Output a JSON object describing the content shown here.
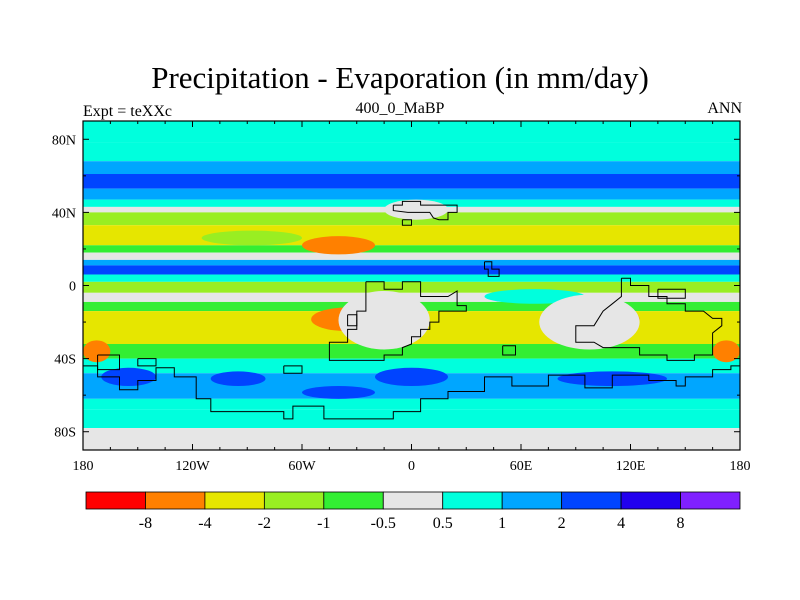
{
  "chart_data": {
    "type": "heatmap",
    "title": "Precipitation - Evaporation (in mm/day)",
    "subtitle_left": "Expt = teXXc",
    "subtitle_center": "400_0_MaBP",
    "subtitle_right": "ANN",
    "x_range": [
      -180,
      180
    ],
    "y_range": [
      -90,
      90
    ],
    "x_ticks": [
      {
        "value": -180,
        "label": "180"
      },
      {
        "value": -120,
        "label": "120W"
      },
      {
        "value": -60,
        "label": "60W"
      },
      {
        "value": 0,
        "label": "0"
      },
      {
        "value": 60,
        "label": "60E"
      },
      {
        "value": 120,
        "label": "120E"
      },
      {
        "value": 180,
        "label": "180"
      }
    ],
    "y_ticks": [
      {
        "value": 80,
        "label": "80N"
      },
      {
        "value": 40,
        "label": "40N"
      },
      {
        "value": 0,
        "label": "0"
      },
      {
        "value": -40,
        "label": "40S"
      },
      {
        "value": -80,
        "label": "80S"
      }
    ],
    "colorbar": {
      "colors": [
        "#ff0000",
        "#ff8000",
        "#e6e600",
        "#99ee22",
        "#33ee33",
        "#e6e6e6",
        "#00ffdd",
        "#00a6ff",
        "#0044ff",
        "#2200ee",
        "#8020ff"
      ],
      "labels": [
        "-8",
        "-4",
        "-2",
        "-1",
        "-0.5",
        "0.5",
        "1",
        "2",
        "4",
        "8"
      ]
    },
    "zonal_bands": [
      {
        "lat_top": 90,
        "lat_bottom": 78,
        "level": 6
      },
      {
        "lat_top": 78,
        "lat_bottom": 68,
        "level": 6
      },
      {
        "lat_top": 68,
        "lat_bottom": 61,
        "level": 7
      },
      {
        "lat_top": 61,
        "lat_bottom": 53,
        "level": 8
      },
      {
        "lat_top": 53,
        "lat_bottom": 47,
        "level": 7
      },
      {
        "lat_top": 47,
        "lat_bottom": 43,
        "level": 6
      },
      {
        "lat_top": 43,
        "lat_bottom": 40,
        "level": 5
      },
      {
        "lat_top": 40,
        "lat_bottom": 33,
        "level": 3
      },
      {
        "lat_top": 33,
        "lat_bottom": 22,
        "level": 2
      },
      {
        "lat_top": 22,
        "lat_bottom": 18,
        "level": 4
      },
      {
        "lat_top": 18,
        "lat_bottom": 14,
        "level": 5
      },
      {
        "lat_top": 14,
        "lat_bottom": 11,
        "level": 7
      },
      {
        "lat_top": 11,
        "lat_bottom": 6,
        "level": 8
      },
      {
        "lat_top": 6,
        "lat_bottom": 2,
        "level": 6
      },
      {
        "lat_top": 2,
        "lat_bottom": -4,
        "level": 3
      },
      {
        "lat_top": -4,
        "lat_bottom": -9,
        "level": 5
      },
      {
        "lat_top": -9,
        "lat_bottom": -14,
        "level": 4
      },
      {
        "lat_top": -14,
        "lat_bottom": -32,
        "level": 2
      },
      {
        "lat_top": -32,
        "lat_bottom": -40,
        "level": 4
      },
      {
        "lat_top": -40,
        "lat_bottom": -48,
        "level": 6
      },
      {
        "lat_top": -48,
        "lat_bottom": -62,
        "level": 7
      },
      {
        "lat_top": -62,
        "lat_bottom": -68,
        "level": 6
      },
      {
        "lat_top": -68,
        "lat_bottom": -78,
        "level": 6
      },
      {
        "lat_top": -78,
        "lat_bottom": -90,
        "level": 5
      }
    ],
    "anomalies": [
      {
        "lon": [
          -60,
          -20
        ],
        "lat": [
          27,
          17
        ],
        "level": 1
      },
      {
        "lon": [
          -115,
          -60
        ],
        "lat": [
          30,
          22
        ],
        "level": 3
      },
      {
        "lon": [
          -55,
          -15
        ],
        "lat": [
          -12,
          -25
        ],
        "level": 1
      },
      {
        "lon": [
          90,
          125
        ],
        "lat": [
          -12,
          -25
        ],
        "level": 1
      },
      {
        "lon": [
          -180,
          -165
        ],
        "lat": [
          -30,
          -42
        ],
        "level": 1
      },
      {
        "lon": [
          165,
          180
        ],
        "lat": [
          -30,
          -42
        ],
        "level": 1
      },
      {
        "lon": [
          40,
          95
        ],
        "lat": [
          -2,
          -10
        ],
        "level": 6
      },
      {
        "lon": [
          -40,
          10
        ],
        "lat": [
          -3,
          -35
        ],
        "level": 5
      },
      {
        "lon": [
          70,
          125
        ],
        "lat": [
          -5,
          -35
        ],
        "level": 5
      },
      {
        "lon": [
          -15,
          20
        ],
        "lat": [
          47,
          36
        ],
        "level": 5
      },
      {
        "lon": [
          -170,
          -140
        ],
        "lat": [
          -45,
          -55
        ],
        "level": 8
      },
      {
        "lon": [
          -110,
          -80
        ],
        "lat": [
          -47,
          -55
        ],
        "level": 8
      },
      {
        "lon": [
          -20,
          20
        ],
        "lat": [
          -45,
          -55
        ],
        "level": 8
      },
      {
        "lon": [
          80,
          140
        ],
        "lat": [
          -47,
          -55
        ],
        "level": 8
      },
      {
        "lon": [
          -60,
          -20
        ],
        "lat": [
          -55,
          -62
        ],
        "level": 8
      }
    ],
    "coastlines": [
      {
        "name": "north-block",
        "points": [
          [
            -10,
            44
          ],
          [
            -5,
            44
          ],
          [
            -5,
            46
          ],
          [
            5,
            46
          ],
          [
            5,
            44
          ],
          [
            15,
            44
          ],
          [
            25,
            44
          ],
          [
            25,
            40
          ],
          [
            20,
            40
          ],
          [
            20,
            36
          ],
          [
            15,
            36
          ],
          [
            12,
            37
          ],
          [
            10,
            40
          ],
          [
            0,
            40
          ],
          [
            -2,
            40
          ],
          [
            -10,
            41
          ],
          [
            -10,
            44
          ]
        ]
      },
      {
        "name": "west-continent",
        "points": [
          [
            -25,
            2
          ],
          [
            -15,
            2
          ],
          [
            -15,
            -2
          ],
          [
            -5,
            -2
          ],
          [
            -5,
            2
          ],
          [
            5,
            2
          ],
          [
            5,
            -6
          ],
          [
            20,
            -6
          ],
          [
            25,
            -3
          ],
          [
            25,
            -11
          ],
          [
            30,
            -11
          ],
          [
            30,
            -14
          ],
          [
            15,
            -14
          ],
          [
            15,
            -20
          ],
          [
            10,
            -20
          ],
          [
            10,
            -24
          ],
          [
            5,
            -24
          ],
          [
            5,
            -28
          ],
          [
            0,
            -28
          ],
          [
            0,
            -32
          ],
          [
            -5,
            -34
          ],
          [
            -5,
            -38
          ],
          [
            -15,
            -38
          ],
          [
            -15,
            -41
          ],
          [
            -45,
            -41
          ],
          [
            -45,
            -31
          ],
          [
            -35,
            -31
          ],
          [
            -35,
            -24
          ],
          [
            -30,
            -24
          ],
          [
            -30,
            -14
          ],
          [
            -25,
            -14
          ],
          [
            -25,
            -2
          ],
          [
            -25,
            2
          ]
        ]
      },
      {
        "name": "east-continent",
        "points": [
          [
            115,
            4
          ],
          [
            120,
            4
          ],
          [
            120,
            0
          ],
          [
            130,
            0
          ],
          [
            130,
            -6
          ],
          [
            140,
            -6
          ],
          [
            140,
            -10
          ],
          [
            150,
            -10
          ],
          [
            150,
            -14
          ],
          [
            160,
            -14
          ],
          [
            165,
            -18
          ],
          [
            170,
            -18
          ],
          [
            170,
            -22
          ],
          [
            165,
            -26
          ],
          [
            165,
            -38
          ],
          [
            155,
            -38
          ],
          [
            155,
            -41
          ],
          [
            140,
            -41
          ],
          [
            140,
            -38
          ],
          [
            125,
            -38
          ],
          [
            125,
            -34
          ],
          [
            105,
            -34
          ],
          [
            100,
            -31
          ],
          [
            90,
            -31
          ],
          [
            90,
            -22
          ],
          [
            100,
            -22
          ],
          [
            105,
            -14
          ],
          [
            110,
            -10
          ],
          [
            115,
            -6
          ],
          [
            115,
            4
          ]
        ]
      },
      {
        "name": "mid-island",
        "points": [
          [
            40,
            13
          ],
          [
            44,
            13
          ],
          [
            44,
            9
          ],
          [
            48,
            9
          ],
          [
            48,
            5
          ],
          [
            42,
            5
          ],
          [
            42,
            9
          ],
          [
            40,
            9
          ],
          [
            40,
            13
          ]
        ]
      },
      {
        "name": "small-east-box",
        "points": [
          [
            135,
            -2
          ],
          [
            150,
            -2
          ],
          [
            150,
            -7
          ],
          [
            135,
            -7
          ],
          [
            135,
            -2
          ]
        ]
      },
      {
        "name": "isle-a",
        "points": [
          [
            -35,
            -16
          ],
          [
            -30,
            -16
          ],
          [
            -30,
            -22
          ],
          [
            -35,
            -22
          ],
          [
            -35,
            -16
          ]
        ]
      },
      {
        "name": "isle-b",
        "points": [
          [
            50,
            -33
          ],
          [
            57,
            -33
          ],
          [
            57,
            -38
          ],
          [
            50,
            -38
          ],
          [
            50,
            -33
          ]
        ]
      },
      {
        "name": "isle-c",
        "points": [
          [
            -5,
            36
          ],
          [
            0,
            36
          ],
          [
            0,
            33
          ],
          [
            -5,
            33
          ],
          [
            -5,
            36
          ]
        ]
      },
      {
        "name": "southern-continent",
        "points": [
          [
            -180,
            -44
          ],
          [
            -172,
            -44
          ],
          [
            -172,
            -50
          ],
          [
            -160,
            -50
          ],
          [
            -160,
            -57
          ],
          [
            -150,
            -57
          ],
          [
            -150,
            -52
          ],
          [
            -140,
            -52
          ],
          [
            -140,
            -45
          ],
          [
            -130,
            -45
          ],
          [
            -130,
            -50
          ],
          [
            -118,
            -50
          ],
          [
            -118,
            -62
          ],
          [
            -110,
            -62
          ],
          [
            -110,
            -69
          ],
          [
            -70,
            -69
          ],
          [
            -70,
            -73
          ],
          [
            -65,
            -73
          ],
          [
            -65,
            -66
          ],
          [
            -48,
            -66
          ],
          [
            -48,
            -73
          ],
          [
            -10,
            -73
          ],
          [
            -10,
            -69
          ],
          [
            5,
            -69
          ],
          [
            5,
            -62
          ],
          [
            20,
            -62
          ],
          [
            20,
            -58
          ],
          [
            40,
            -58
          ],
          [
            40,
            -50
          ],
          [
            55,
            -50
          ],
          [
            55,
            -55
          ],
          [
            75,
            -55
          ],
          [
            75,
            -49
          ],
          [
            95,
            -49
          ],
          [
            95,
            -56
          ],
          [
            110,
            -56
          ],
          [
            110,
            -49
          ],
          [
            130,
            -49
          ],
          [
            130,
            -52
          ],
          [
            145,
            -52
          ],
          [
            145,
            -55
          ],
          [
            150,
            -55
          ],
          [
            150,
            -50
          ],
          [
            165,
            -50
          ],
          [
            165,
            -46
          ],
          [
            175,
            -46
          ],
          [
            175,
            -44
          ],
          [
            180,
            -44
          ]
        ]
      },
      {
        "name": "far-west-block",
        "points": [
          [
            -172,
            -38
          ],
          [
            -160,
            -38
          ],
          [
            -160,
            -46
          ],
          [
            -172,
            -46
          ],
          [
            -172,
            -38
          ]
        ]
      },
      {
        "name": "south-blob-a",
        "points": [
          [
            -150,
            -40
          ],
          [
            -140,
            -40
          ],
          [
            -140,
            -44
          ],
          [
            -150,
            -44
          ],
          [
            -150,
            -40
          ]
        ]
      },
      {
        "name": "south-blob-b",
        "points": [
          [
            -70,
            -44
          ],
          [
            -60,
            -44
          ],
          [
            -60,
            -48
          ],
          [
            -70,
            -48
          ],
          [
            -70,
            -44
          ]
        ]
      }
    ]
  }
}
